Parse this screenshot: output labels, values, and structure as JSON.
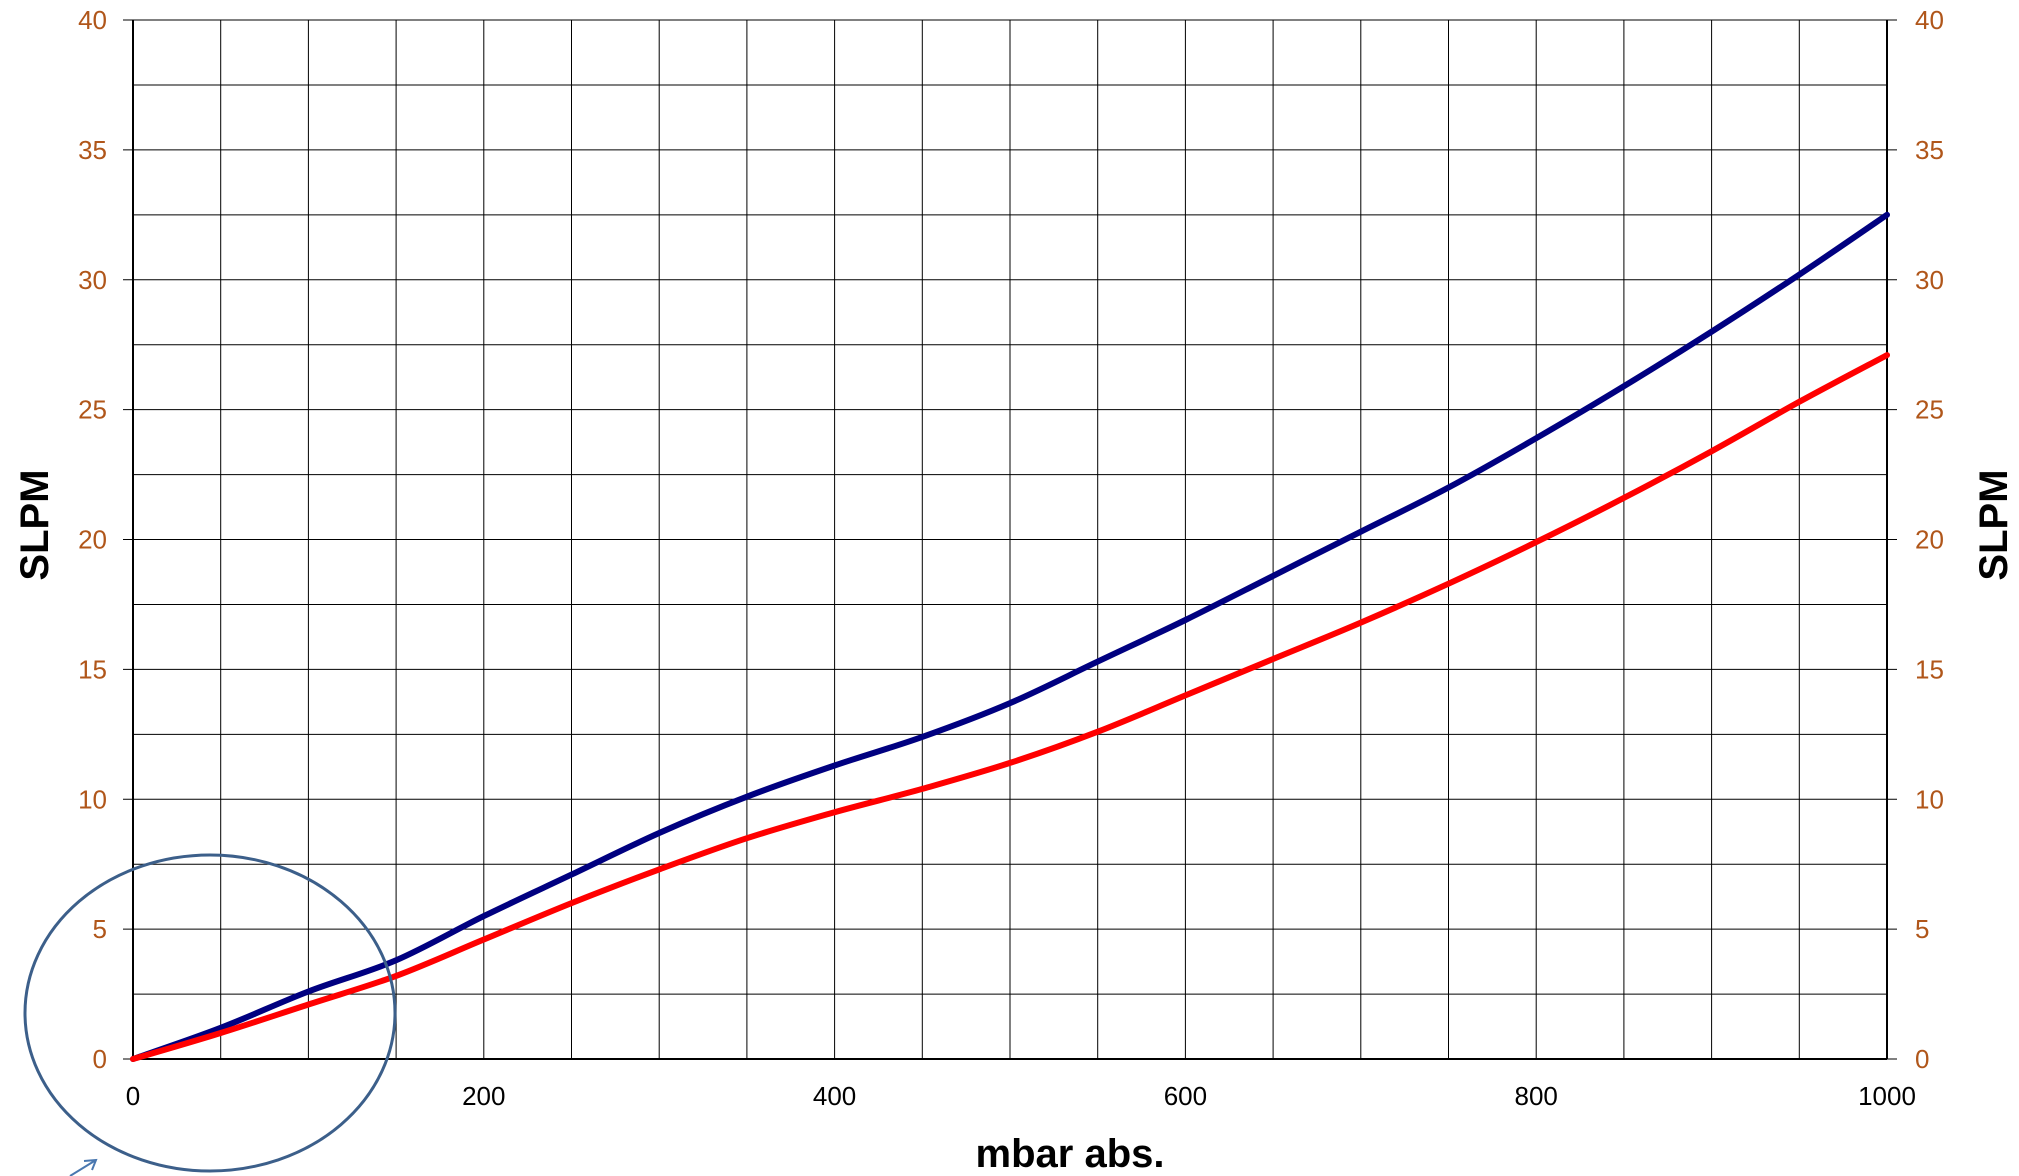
{
  "chart_data": {
    "type": "line",
    "title": "",
    "xlabel": "mbar abs.",
    "ylabel": "SLPM",
    "ylabel_right": "SLPM",
    "xlim": [
      0,
      1000
    ],
    "ylim": [
      0,
      40
    ],
    "x_ticks": [
      "0",
      "200",
      "400",
      "600",
      "800",
      "1000"
    ],
    "y_ticks": [
      "0",
      "5",
      "10",
      "15",
      "20",
      "25",
      "30",
      "35",
      "40"
    ],
    "grid": true,
    "x_grid_step": 50,
    "y_grid_step": 2.5,
    "x": [
      0,
      50,
      100,
      150,
      200,
      250,
      300,
      350,
      400,
      450,
      500,
      550,
      600,
      650,
      700,
      750,
      800,
      850,
      900,
      950,
      1000
    ],
    "series": [
      {
        "color": "#000080",
        "values": [
          0,
          1.2,
          2.6,
          3.8,
          5.5,
          7.1,
          8.7,
          10.1,
          11.3,
          12.4,
          13.7,
          15.3,
          16.9,
          18.6,
          20.3,
          22.0,
          23.9,
          25.9,
          28.0,
          30.2,
          32.5
        ]
      },
      {
        "color": "#ff0000",
        "values": [
          0,
          1.0,
          2.1,
          3.2,
          4.6,
          6.0,
          7.3,
          8.5,
          9.5,
          10.4,
          11.4,
          12.6,
          14.0,
          15.4,
          16.8,
          18.3,
          19.9,
          21.6,
          23.4,
          25.3,
          27.1
        ]
      }
    ],
    "annotation": "ellipse around the origin region"
  }
}
